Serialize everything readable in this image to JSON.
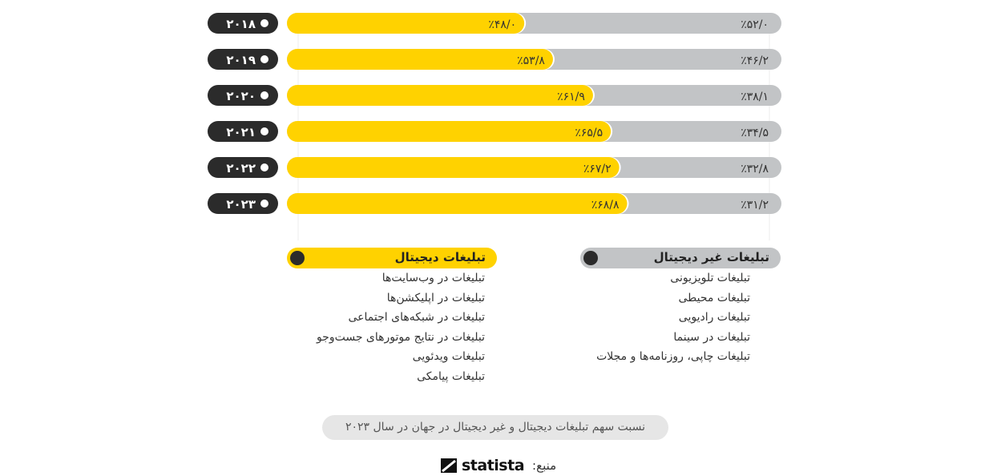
{
  "chart_data": {
    "type": "bar",
    "orientation": "horizontal-stacked-100",
    "categories": [
      "۲۰۱۸",
      "۲۰۱۹",
      "۲۰۲۰",
      "۲۰۲۱",
      "۲۰۲۲",
      "۲۰۲۳"
    ],
    "series": [
      {
        "key": "digital",
        "values": [
          48.0,
          53.8,
          61.9,
          65.5,
          67.2,
          68.8
        ],
        "labels": [
          "٪۴۸/۰",
          "٪۵۳/۸",
          "٪۶۱/۹",
          "٪۶۵/۵",
          "٪۶۷/۲",
          "٪۶۸/۸"
        ],
        "color": "#ffd200"
      },
      {
        "key": "non_digital",
        "values": [
          52.0,
          46.2,
          38.1,
          34.5,
          32.8,
          31.2
        ],
        "labels": [
          "٪۵۲/۰",
          "٪۴۶/۲",
          "٪۳۸/۱",
          "٪۳۴/۵",
          "٪۳۲/۸",
          "٪۳۱/۲"
        ],
        "color": "#c2c4c6"
      }
    ],
    "ylim": [
      0,
      100
    ],
    "year_pill_color": "#2b2b2b"
  },
  "legend": {
    "non_digital": {
      "title": "تبلیغات غیر دیجیتال",
      "items": [
        "تبلیغات تلویزیونی",
        "تبلیغات محیطی",
        "تبلیغات رادیویی",
        "تبلیغات در سینما",
        "تبلیغات چاپی، روزنامه‌ها و مجلات"
      ]
    },
    "digital": {
      "title": "تبلیغات دیجیتال",
      "items": [
        "تبلیغات در وب‌سایت‌ها",
        "تبلیغات در اپلیکشن‌ها",
        "تبلیغات در شبکه‌های اجتماعی",
        "تبلیغات در نتایج موتورهای جست‌وجو",
        "تبلیغات ویدئویی",
        "تبلیغات پیامکی"
      ]
    }
  },
  "caption": "نسبت سهم تبلیغات دیجیتال و غیر دیجیتال در جهان در سال ۲۰۲۳",
  "source": {
    "label": "منبع:",
    "logo": "statista"
  }
}
